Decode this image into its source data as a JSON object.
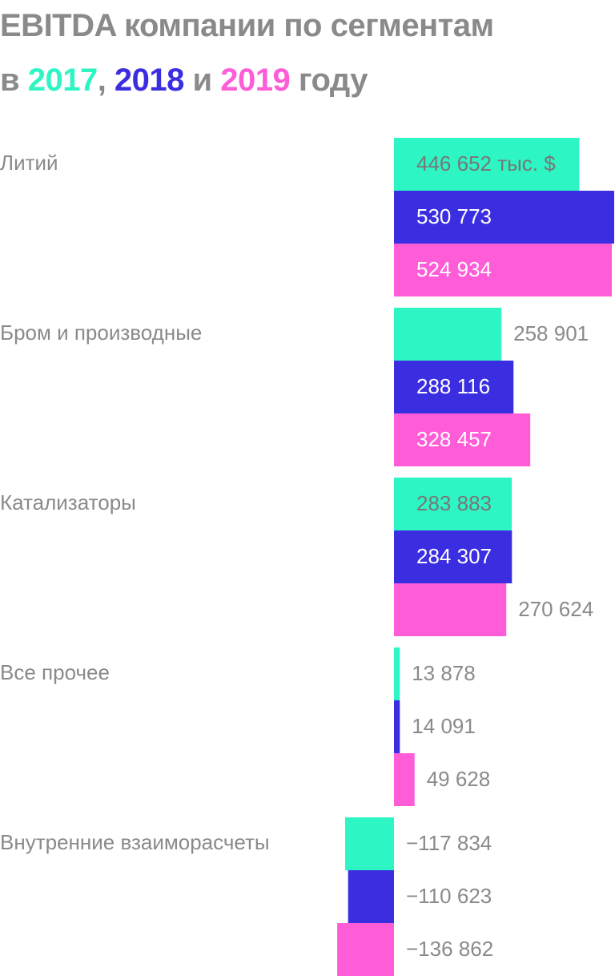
{
  "title": {
    "line1": "EBITDA компании по сегментам",
    "line2": [
      {
        "text": "в ",
        "color": "#8a8a8a"
      },
      {
        "text": "2017",
        "color": "#2ef5c4"
      },
      {
        "text": ", ",
        "color": "#8a8a8a"
      },
      {
        "text": "2018",
        "color": "#3b2ee0"
      },
      {
        "text": " и ",
        "color": "#8a8a8a"
      },
      {
        "text": "2019",
        "color": "#ff5cd8"
      },
      {
        "text": " году",
        "color": "#8a8a8a"
      }
    ]
  },
  "colors": {
    "text": "#8a8a8a",
    "inside_label": "#ffffff",
    "inside_label_first": "#777777"
  },
  "chart_data": {
    "type": "bar",
    "orientation": "horizontal",
    "unit": "тыс. $",
    "categories": [
      "Литий",
      "Бром и производные",
      "Катализаторы",
      "Все прочее",
      "Внутренние взаиморасчеты"
    ],
    "series": [
      {
        "name": "2017",
        "color": "#2ef5c4",
        "values": [
          446652,
          258901,
          283883,
          13878,
          -117834
        ]
      },
      {
        "name": "2018",
        "color": "#3b2ee0",
        "values": [
          530773,
          288116,
          284307,
          14091,
          -110623
        ]
      },
      {
        "name": "2019",
        "color": "#ff5cd8",
        "values": [
          524934,
          328457,
          270624,
          49628,
          -136862
        ]
      }
    ],
    "value_labels": [
      [
        "446 652 тыс. $",
        "530 773",
        "524 934"
      ],
      [
        "258 901",
        "288 116",
        "328 457"
      ],
      [
        "283 883",
        "284 307",
        "270 624"
      ],
      [
        "13 878",
        "14 091",
        "49 628"
      ],
      [
        "−117 834",
        "−110 623",
        "−136 862"
      ]
    ],
    "label_inside": [
      [
        true,
        true,
        true
      ],
      [
        false,
        true,
        true
      ],
      [
        true,
        true,
        false
      ],
      [
        false,
        false,
        false
      ],
      [
        false,
        false,
        false
      ]
    ],
    "xlim": [
      -117500,
      530773
    ],
    "grid": false,
    "legend": "title"
  }
}
